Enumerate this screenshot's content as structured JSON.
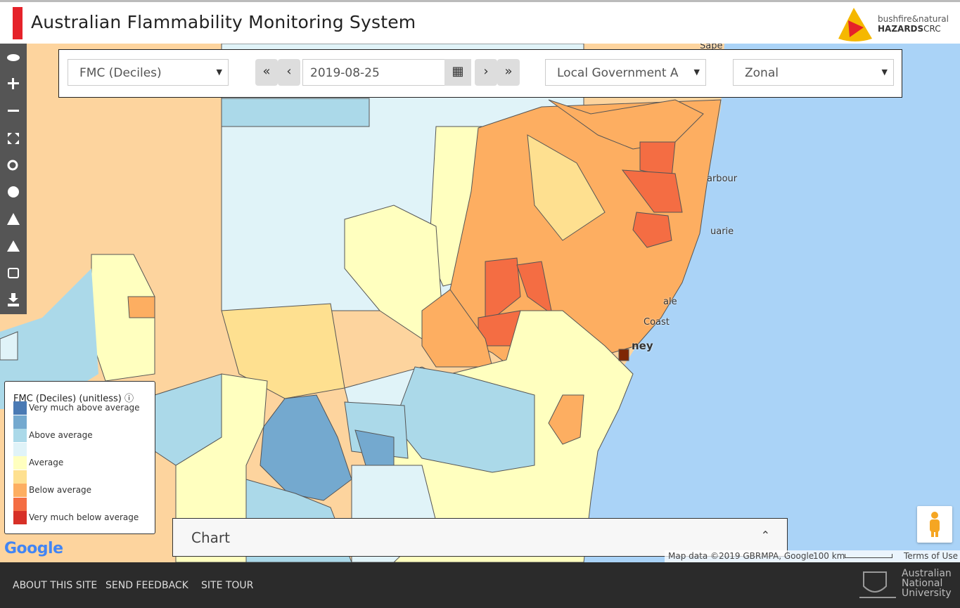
{
  "header": {
    "title": "Australian Flammability Monitoring System",
    "logo": {
      "line1": "bushfire&natural",
      "line2": "HAZARDS",
      "line3": "CRC"
    }
  },
  "controls": {
    "layer": "FMC (Deciles)",
    "date": "2019-08-25",
    "region": "Local Government A",
    "mode": "Zonal"
  },
  "legend": {
    "title": "FMC (Deciles) (unitless)",
    "items": [
      {
        "color": "#4a7ab4",
        "label": "Very much above average"
      },
      {
        "color": "#74a9cf"
      },
      {
        "color": "#abd9e9",
        "label": "Above average"
      },
      {
        "color": "#e0f3f8"
      },
      {
        "color": "#ffffbf",
        "label": "Average"
      },
      {
        "color": "#fee090"
      },
      {
        "color": "#fdae61",
        "label": "Below average"
      },
      {
        "color": "#f46d43"
      },
      {
        "color": "#d73027",
        "label": "Very much below average"
      }
    ]
  },
  "map_labels": [
    "Sape",
    "arbour",
    "uarie",
    "ale",
    "Coast",
    "ney"
  ],
  "chart_panel": {
    "title": "Chart"
  },
  "map_footer": {
    "brand": "Google",
    "attribution": "Map data ©2019 GBRMPA, Google",
    "scale": "100 km",
    "terms": "Terms of Use"
  },
  "footer": {
    "links": [
      "ABOUT THIS SITE",
      "SEND FEEDBACK",
      "SITE TOUR"
    ],
    "university": [
      "Australian",
      "National",
      "University"
    ]
  }
}
